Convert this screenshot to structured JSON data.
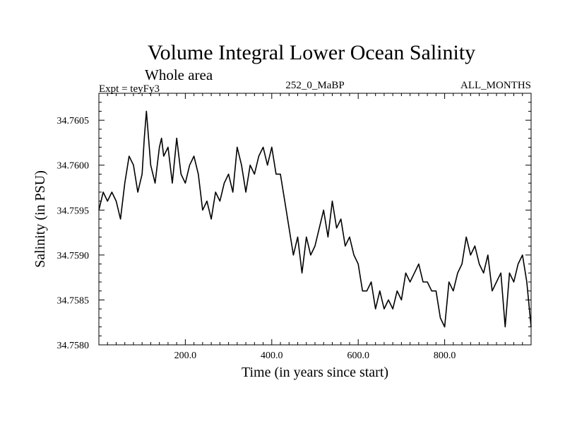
{
  "chart_data": {
    "type": "line",
    "title": "Volume Integral Lower Ocean Salinity",
    "subtitle": "Whole area",
    "header_left": "Expt = teyFy3",
    "header_center": "252_0_MaBP",
    "header_right": "ALL_MONTHS",
    "xlabel": "Time (in years since start)",
    "ylabel": "Salinity (in PSU)",
    "xlim": [
      0,
      1000
    ],
    "ylim": [
      34.758,
      34.7608
    ],
    "x_ticks": [
      200,
      400,
      600,
      800
    ],
    "x_tick_labels": [
      "200.0",
      "400.0",
      "600.0",
      "800.0"
    ],
    "y_ticks": [
      34.758,
      34.7585,
      34.759,
      34.7595,
      34.76,
      34.7605
    ],
    "y_tick_labels": [
      "34.7580",
      "34.7585",
      "34.7590",
      "34.7595",
      "34.7600",
      "34.7605"
    ],
    "grid": false,
    "series": [
      {
        "name": "salinity",
        "color": "#000000",
        "x": [
          0,
          10,
          20,
          30,
          40,
          50,
          60,
          70,
          80,
          90,
          100,
          105,
          110,
          120,
          130,
          140,
          145,
          150,
          160,
          170,
          180,
          190,
          200,
          210,
          220,
          230,
          240,
          250,
          260,
          270,
          280,
          290,
          300,
          310,
          320,
          330,
          340,
          350,
          360,
          370,
          380,
          390,
          400,
          410,
          420,
          430,
          440,
          450,
          460,
          470,
          480,
          490,
          500,
          510,
          520,
          530,
          540,
          550,
          560,
          570,
          580,
          590,
          600,
          610,
          620,
          630,
          640,
          650,
          660,
          670,
          680,
          690,
          700,
          710,
          720,
          730,
          740,
          750,
          760,
          770,
          780,
          790,
          800,
          810,
          820,
          830,
          840,
          850,
          860,
          870,
          880,
          890,
          900,
          910,
          920,
          930,
          940,
          950,
          960,
          970,
          980,
          990,
          1000
        ],
        "values": [
          34.7595,
          34.7597,
          34.7596,
          34.7597,
          34.7596,
          34.7594,
          34.7598,
          34.7601,
          34.76,
          34.7597,
          34.7599,
          34.7603,
          34.7606,
          34.76,
          34.7598,
          34.7602,
          34.7603,
          34.7601,
          34.7602,
          34.7598,
          34.7603,
          34.7599,
          34.7598,
          34.76,
          34.7601,
          34.7599,
          34.7595,
          34.7596,
          34.7594,
          34.7597,
          34.7596,
          34.7598,
          34.7599,
          34.7597,
          34.7602,
          34.76,
          34.7597,
          34.76,
          34.7599,
          34.7601,
          34.7602,
          34.76,
          34.7602,
          34.7599,
          34.7599,
          34.7596,
          34.7593,
          34.759,
          34.7592,
          34.7588,
          34.7592,
          34.759,
          34.7591,
          34.7593,
          34.7595,
          34.7592,
          34.7596,
          34.7593,
          34.7594,
          34.7591,
          34.7592,
          34.759,
          34.7589,
          34.7586,
          34.7586,
          34.7587,
          34.7584,
          34.7586,
          34.7584,
          34.7585,
          34.7584,
          34.7586,
          34.7585,
          34.7588,
          34.7587,
          34.7588,
          34.7589,
          34.7587,
          34.7587,
          34.7586,
          34.7586,
          34.7583,
          34.7582,
          34.7587,
          34.7586,
          34.7588,
          34.7589,
          34.7592,
          34.759,
          34.7591,
          34.7589,
          34.7588,
          34.759,
          34.7586,
          34.7587,
          34.7588,
          34.7582,
          34.7588,
          34.7587,
          34.7589,
          34.759,
          34.7587,
          34.7582
        ]
      }
    ]
  }
}
